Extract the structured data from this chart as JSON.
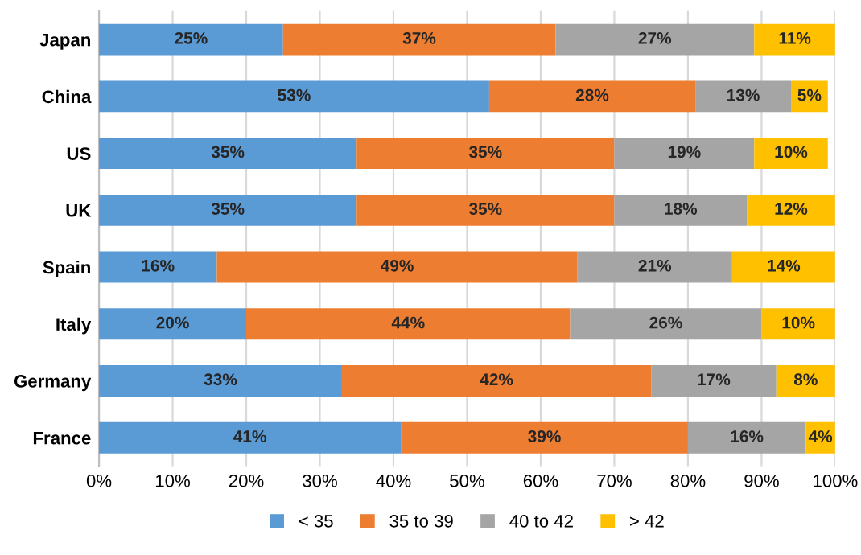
{
  "chart_data": {
    "type": "bar",
    "orientation": "horizontal",
    "stacked": true,
    "categories": [
      "Japan",
      "China",
      "US",
      "UK",
      "Spain",
      "Italy",
      "Germany",
      "France"
    ],
    "series": [
      {
        "name": "< 35",
        "color": "#5b9bd5",
        "values": [
          25,
          53,
          35,
          35,
          16,
          20,
          33,
          41
        ],
        "value_labels": [
          "25%",
          "53%",
          "35%",
          "35%",
          "16%",
          "20%",
          "33%",
          "41%"
        ]
      },
      {
        "name": "35 to 39",
        "color": "#ed7d31",
        "values": [
          37,
          28,
          35,
          35,
          49,
          44,
          42,
          39
        ],
        "value_labels": [
          "37%",
          "28%",
          "35%",
          "35%",
          "49%",
          "44%",
          "42%",
          "39%"
        ]
      },
      {
        "name": "40 to 42",
        "color": "#a5a5a5",
        "values": [
          27,
          13,
          19,
          18,
          21,
          26,
          17,
          16
        ],
        "value_labels": [
          "27%",
          "13%",
          "19%",
          "18%",
          "21%",
          "26%",
          "17%",
          "16%"
        ]
      },
      {
        "name": "> 42",
        "color": "#ffc000",
        "values": [
          11,
          5,
          10,
          12,
          14,
          10,
          8,
          4
        ],
        "value_labels": [
          "11%",
          "5%",
          "10%",
          "12%",
          "14%",
          "10%",
          "8%",
          "4%"
        ]
      }
    ],
    "xlim": [
      0,
      100
    ],
    "xticks": [
      {
        "value": 0,
        "label": "0%"
      },
      {
        "value": 10,
        "label": "10%"
      },
      {
        "value": 20,
        "label": "20%"
      },
      {
        "value": 30,
        "label": "30%"
      },
      {
        "value": 40,
        "label": "40%"
      },
      {
        "value": 50,
        "label": "50%"
      },
      {
        "value": 60,
        "label": "60%"
      },
      {
        "value": 70,
        "label": "70%"
      },
      {
        "value": 80,
        "label": "80%"
      },
      {
        "value": 90,
        "label": "90%"
      },
      {
        "value": 100,
        "label": "100%"
      }
    ],
    "grid": "x",
    "legend": "bottom"
  }
}
